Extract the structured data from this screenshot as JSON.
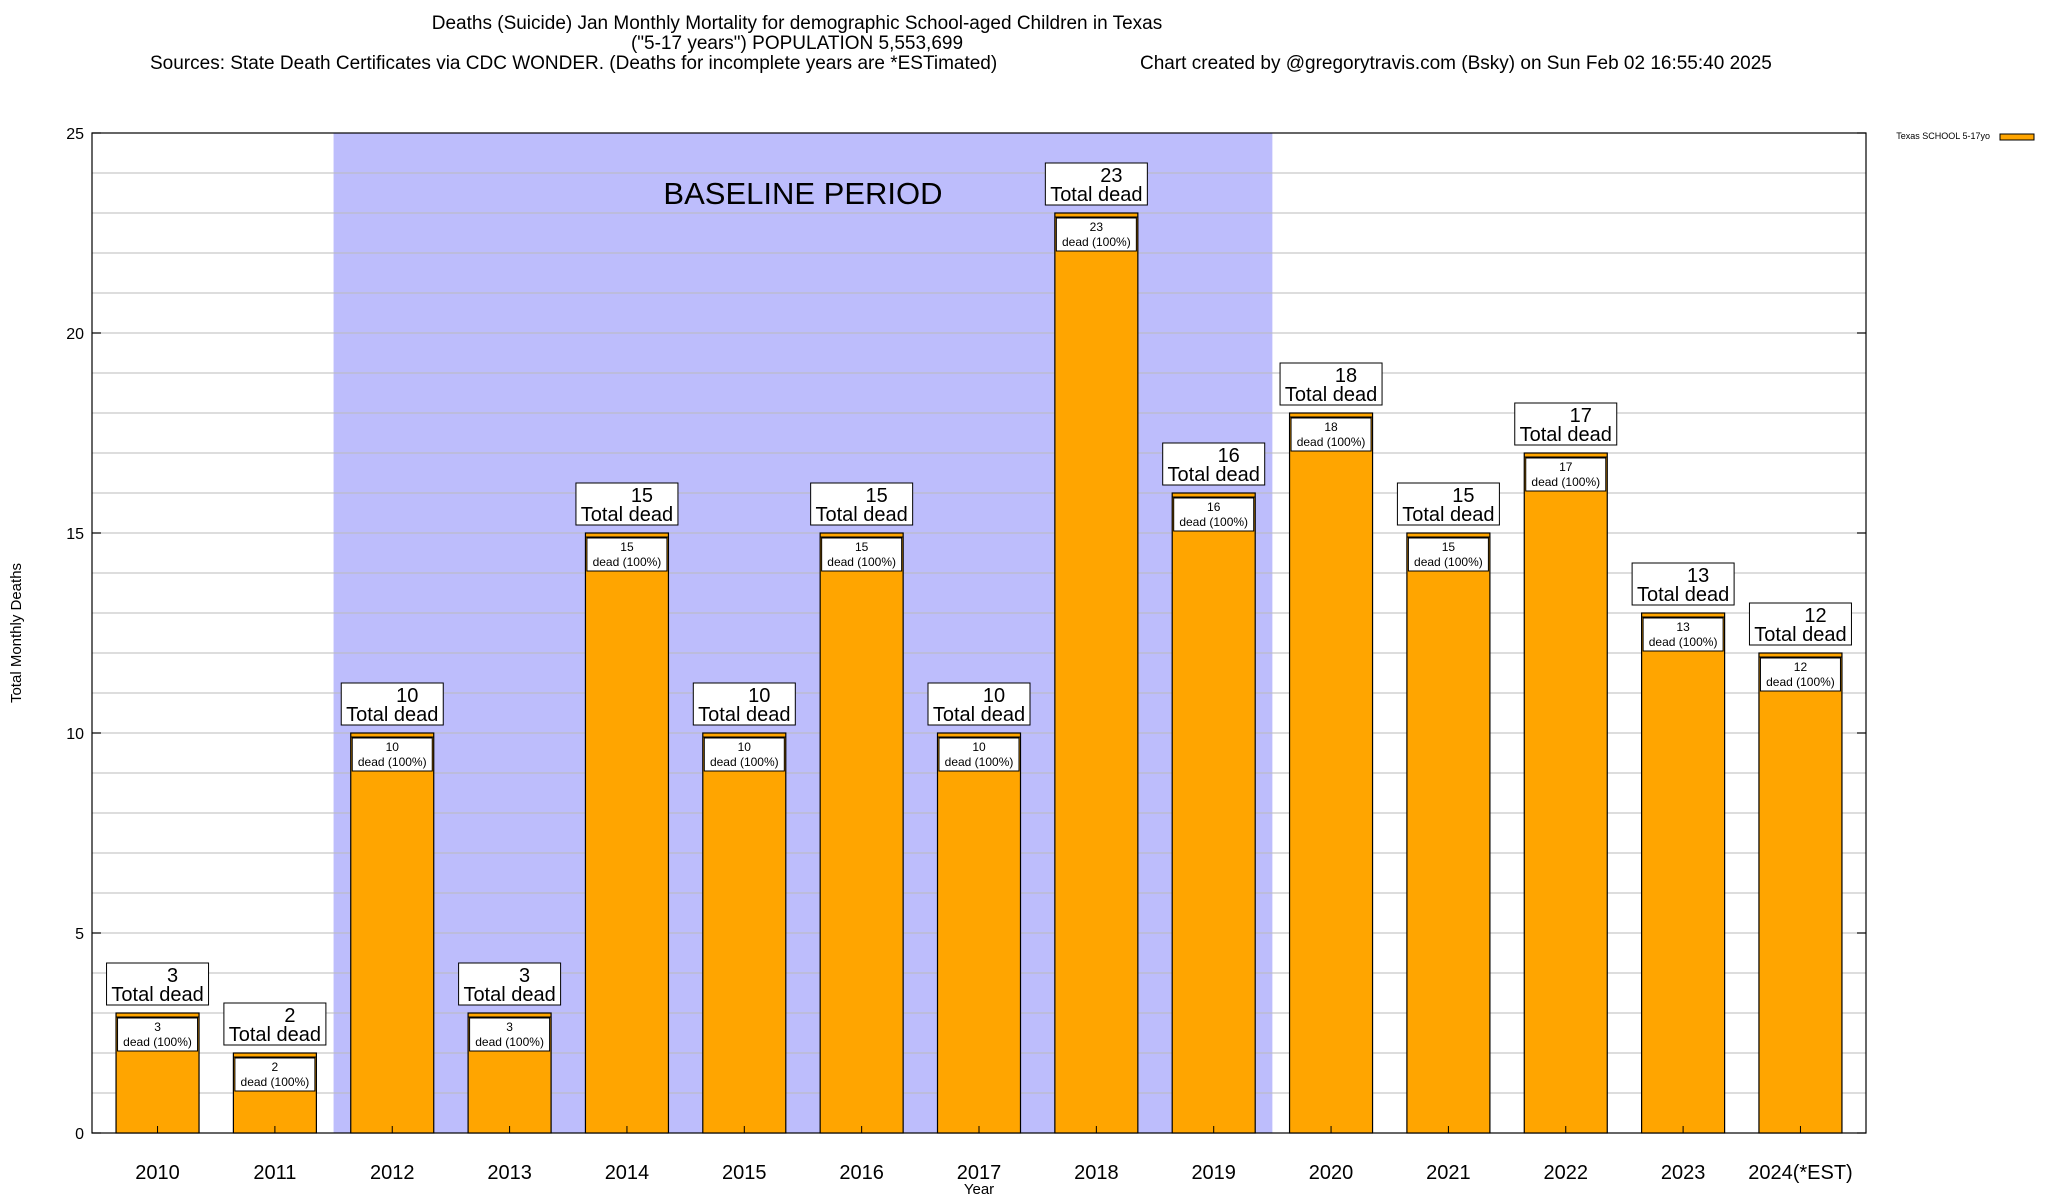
{
  "chart_data": {
    "type": "bar",
    "title": "Deaths (Suicide) Jan Monthly Mortality for demographic School-aged Children in Texas",
    "subtitle": "(\"5-17 years\") POPULATION 5,553,699",
    "sources": "Sources: State Death Certificates via CDC WONDER. (Deaths for incomplete years are *ESTimated)",
    "credit": "Chart created by @gregorytravis.com (Bsky) on Sun Feb 02 16:55:40 2025",
    "xlabel": "Year",
    "ylabel": "Total Monthly Deaths",
    "ylim": [
      0,
      25
    ],
    "yticks": [
      "0",
      "5",
      "10",
      "15",
      "20",
      "25"
    ],
    "minor_grid_step": 1,
    "grid": true,
    "legend_placement": "top-right",
    "categories": [
      "2010",
      "2011",
      "2012",
      "2013",
      "2014",
      "2015",
      "2016",
      "2017",
      "2018",
      "2019",
      "2020",
      "2021",
      "2022",
      "2023",
      "2024(*EST)"
    ],
    "series": [
      {
        "name": "Texas SCHOOL 5-17yo",
        "values": [
          3,
          2,
          10,
          3,
          15,
          10,
          15,
          10,
          23,
          16,
          18,
          15,
          17,
          13,
          12
        ]
      }
    ],
    "total_label_suffix": "Total dead",
    "inner_label_suffix": "dead (100%)",
    "annotation": {
      "text": "BASELINE PERIOD",
      "start_category": "2012",
      "end_category": "2019"
    },
    "colors": {
      "bar": "#ffa500",
      "baseline_shade": "#bdbdfc",
      "grid": "#bbbbbb"
    }
  }
}
